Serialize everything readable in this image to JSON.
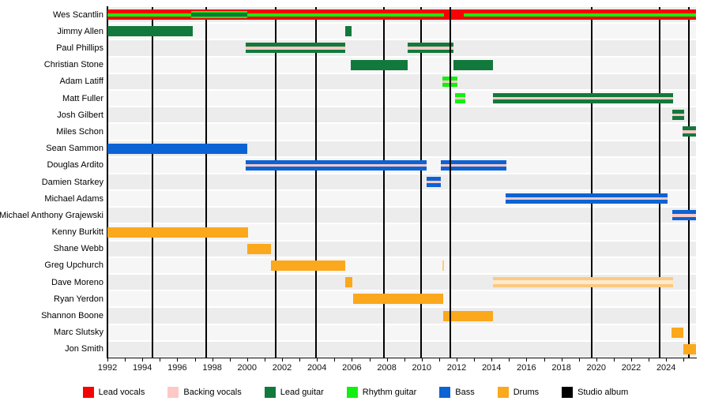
{
  "chart_data": {
    "type": "gantt-timeline",
    "description": "Band members timeline",
    "x_axis": {
      "start_year": 1992,
      "end_year": 2025.7,
      "tick_every_years": 1,
      "label_every_years": 2,
      "labels": [
        "1992",
        "1994",
        "1996",
        "1998",
        "2000",
        "2002",
        "2004",
        "2006",
        "2008",
        "2010",
        "2012",
        "2014",
        "2016",
        "2018",
        "2020",
        "2022",
        "2024"
      ]
    },
    "colors": {
      "lead_vocals": "#f40505",
      "backing_vocals": "#fcc9c6",
      "lead_guitar": "#12793c",
      "rhythm_guitar": "#12ef12",
      "bass": "#0c63d4",
      "drums": "#fba81c",
      "drums_light": "#fcc981",
      "drums_light_stripe": "#fee9cd",
      "album_line": "#000000",
      "row_band_a": "#ececec",
      "row_band_b": "#f6f6f6"
    },
    "albums": [
      {
        "year": 1994.6
      },
      {
        "year": 1997.65
      },
      {
        "year": 2001.65
      },
      {
        "year": 2003.95
      },
      {
        "year": 2007.85
      },
      {
        "year": 2009.95
      },
      {
        "year": 2011.65,
        "front": true
      },
      {
        "year": 2019.75
      },
      {
        "year": 2023.65
      },
      {
        "year": 2025.3
      }
    ],
    "members": [
      {
        "name": "Wes Scantlin",
        "bars": [
          {
            "role": "lead_vocals",
            "start": 1992,
            "end": 2025.7,
            "h": 13
          },
          {
            "role": "rhythm_guitar",
            "start": 1992,
            "end": 2011.28,
            "h": 4
          },
          {
            "role": "rhythm_guitar",
            "start": 2012.4,
            "end": 2025.7,
            "h": 4
          },
          {
            "role": "rhythm_guitar",
            "start": 1996.8,
            "end": 2000.0,
            "h": 9
          },
          {
            "role": "lead_guitar",
            "start": 1996.8,
            "end": 2000.0,
            "h": 5
          }
        ]
      },
      {
        "name": "Jimmy Allen",
        "bars": [
          {
            "role": "lead_guitar",
            "start": 1992,
            "end": 1996.9
          },
          {
            "role": "lead_guitar",
            "start": 2005.6,
            "end": 2006.0
          }
        ]
      },
      {
        "name": "Paul Phillips",
        "bars": [
          {
            "role": "lead_guitar",
            "start": 1999.9,
            "end": 2005.6,
            "backing": true
          },
          {
            "role": "lead_guitar",
            "start": 2009.2,
            "end": 2011.8,
            "backing": true
          }
        ]
      },
      {
        "name": "Christian Stone",
        "bars": [
          {
            "role": "lead_guitar",
            "start": 2005.95,
            "end": 2009.2
          },
          {
            "role": "lead_guitar",
            "start": 2011.8,
            "end": 2014.1
          }
        ]
      },
      {
        "name": "Adam Latiff",
        "bars": [
          {
            "role": "rhythm_guitar",
            "start": 2011.2,
            "end": 2012.05,
            "backing": true
          }
        ]
      },
      {
        "name": "Matt Fuller",
        "bars": [
          {
            "role": "rhythm_guitar",
            "start": 2011.9,
            "end": 2012.5,
            "backing": true
          },
          {
            "role": "lead_guitar",
            "start": 2014.1,
            "end": 2024.4,
            "backing": true
          }
        ]
      },
      {
        "name": "Josh Gilbert",
        "bars": [
          {
            "role": "lead_guitar",
            "start": 2024.35,
            "end": 2025.05,
            "backing": true
          }
        ]
      },
      {
        "name": "Miles Schon",
        "bars": [
          {
            "role": "lead_guitar",
            "start": 2024.95,
            "end": 2025.7,
            "backing": true
          }
        ]
      },
      {
        "name": "Sean Sammon",
        "bars": [
          {
            "role": "bass",
            "start": 1992,
            "end": 2000.0
          }
        ]
      },
      {
        "name": "Douglas Ardito",
        "bars": [
          {
            "role": "bass",
            "start": 1999.9,
            "end": 2010.3,
            "backing": true
          },
          {
            "role": "bass",
            "start": 2011.1,
            "end": 2014.85,
            "backing": true
          }
        ]
      },
      {
        "name": "Damien Starkey",
        "bars": [
          {
            "role": "bass",
            "start": 2010.3,
            "end": 2011.1,
            "backing": true
          }
        ]
      },
      {
        "name": "Michael Adams",
        "bars": [
          {
            "role": "bass",
            "start": 2014.8,
            "end": 2024.1,
            "backing": true
          }
        ]
      },
      {
        "name": "Michael Anthony Grajewski",
        "bars": [
          {
            "role": "bass",
            "start": 2024.35,
            "end": 2025.7,
            "backing": true
          }
        ]
      },
      {
        "name": "Kenny Burkitt",
        "bars": [
          {
            "role": "drums",
            "start": 1992,
            "end": 2000.05
          }
        ]
      },
      {
        "name": "Shane Webb",
        "bars": [
          {
            "role": "drums",
            "start": 2000.0,
            "end": 2001.35
          }
        ]
      },
      {
        "name": "Greg Upchurch",
        "bars": [
          {
            "role": "drums",
            "start": 2001.35,
            "end": 2005.6
          },
          {
            "role": "drums_light",
            "start": 2011.17,
            "end": 2011.28
          }
        ]
      },
      {
        "name": "Dave Moreno",
        "bars": [
          {
            "role": "drums",
            "start": 2005.6,
            "end": 2006.05
          },
          {
            "role": "drums_light",
            "start": 2014.1,
            "end": 2024.4,
            "light_stripe": true
          }
        ]
      },
      {
        "name": "Ryan Yerdon",
        "bars": [
          {
            "role": "drums",
            "start": 2006.05,
            "end": 2011.22
          }
        ]
      },
      {
        "name": "Shannon Boone",
        "bars": [
          {
            "role": "drums",
            "start": 2011.22,
            "end": 2014.1
          }
        ]
      },
      {
        "name": "Marc Slutsky",
        "bars": [
          {
            "role": "drums",
            "start": 2024.3,
            "end": 2025.0
          }
        ]
      },
      {
        "name": "Jon Smith",
        "bars": [
          {
            "role": "drums",
            "start": 2025.0,
            "end": 2025.7
          }
        ]
      }
    ],
    "legend": [
      {
        "label": "Lead vocals",
        "role": "lead_vocals"
      },
      {
        "label": "Backing vocals",
        "role": "backing_vocals"
      },
      {
        "label": "Lead guitar",
        "role": "lead_guitar"
      },
      {
        "label": "Rhythm guitar",
        "role": "rhythm_guitar"
      },
      {
        "label": "Bass",
        "role": "bass"
      },
      {
        "label": "Drums",
        "role": "drums"
      },
      {
        "label": "Studio album",
        "role": "album_line"
      }
    ]
  }
}
